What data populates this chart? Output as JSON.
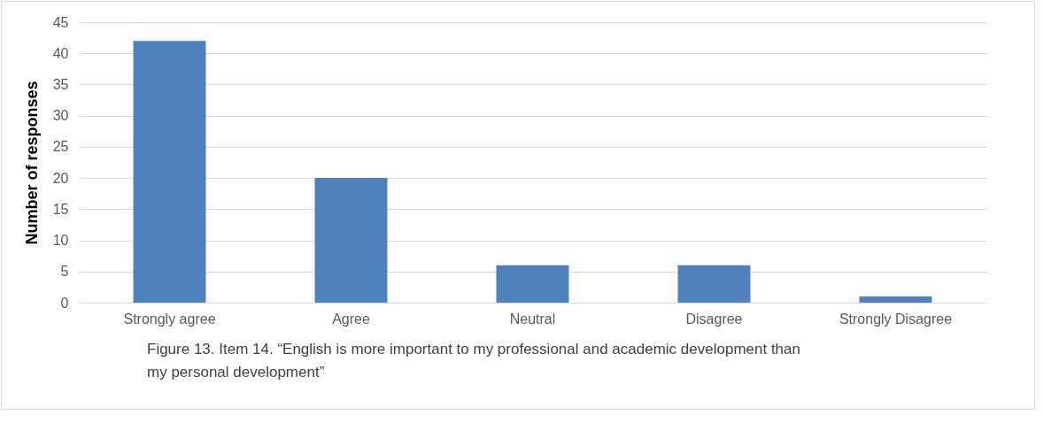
{
  "chart_data": {
    "type": "bar",
    "ylabel": "Number of responses",
    "categories": [
      "Strongly agree",
      "Agree",
      "Neutral",
      "Disagree",
      "Strongly Disagree"
    ],
    "values": [
      42,
      20,
      6,
      6,
      1
    ],
    "color": "#4f81bd",
    "ylim": [
      0,
      45
    ],
    "yticks": [
      0,
      5,
      10,
      15,
      20,
      25,
      30,
      35,
      40,
      45
    ],
    "grid": "y",
    "annotations": [
      "Figure 13. Item 14. “English is more important to my professional and academic development than my personal development”"
    ]
  }
}
